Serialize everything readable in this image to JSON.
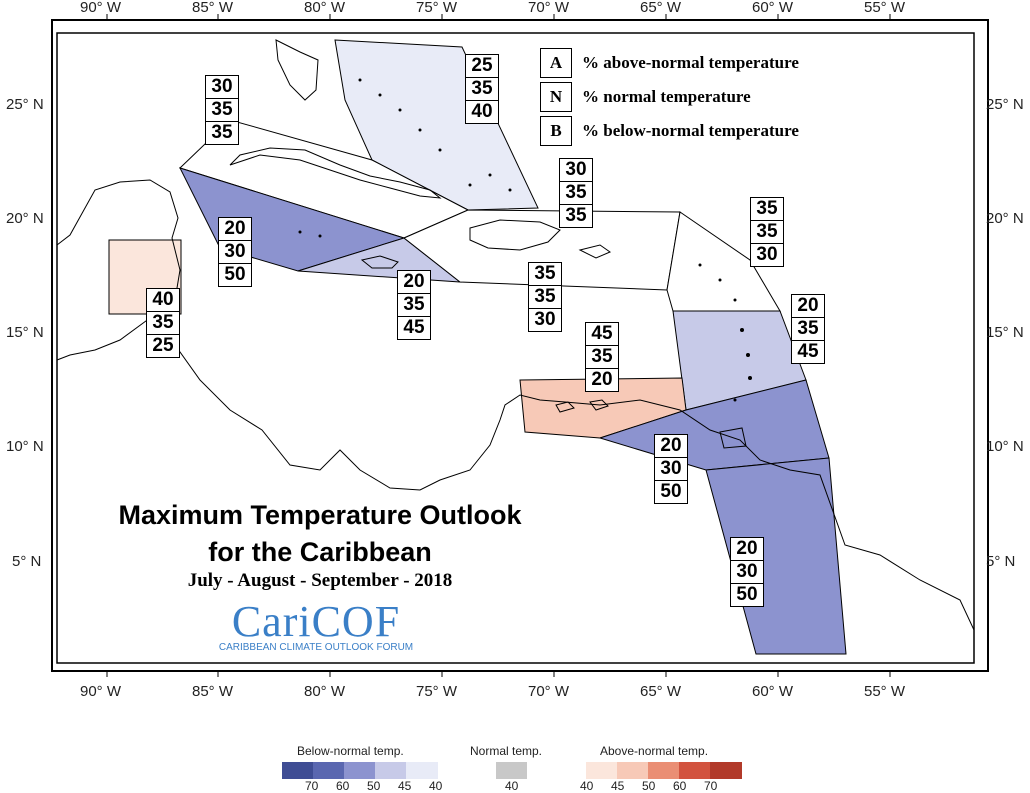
{
  "map": {
    "title_line1": "Maximum Temperature Outlook",
    "title_line2": "for the Caribbean",
    "season": "July - August - September - 2018",
    "logo_word": "CariCOF",
    "logo_subtitle": "CARIBBEAN CLIMATE OUTLOOK FORUM",
    "lon_ticks": [
      "90° W",
      "85° W",
      "80° W",
      "75° W",
      "70° W",
      "65° W",
      "60° W",
      "55° W"
    ],
    "lat_ticks": [
      "25° N",
      "20° N",
      "15° N",
      "10° N",
      "5° N"
    ]
  },
  "legend_key": [
    {
      "key": "A",
      "text": "% above-normal temperature"
    },
    {
      "key": "N",
      "text": "% normal temperature"
    },
    {
      "key": "B",
      "text": "% below-normal temperature"
    }
  ],
  "regions": [
    {
      "id": "bahamas",
      "a": "25",
      "n": "35",
      "b": "40",
      "color": "#e8ebf7"
    },
    {
      "id": "cuba",
      "a": "30",
      "n": "35",
      "b": "35",
      "color": "#ffffff"
    },
    {
      "id": "cayman",
      "a": "20",
      "n": "30",
      "b": "50",
      "color": "#8c93cf"
    },
    {
      "id": "belize",
      "a": "40",
      "n": "35",
      "b": "25",
      "color": "#fbe6dc"
    },
    {
      "id": "jamaica",
      "a": "20",
      "n": "35",
      "b": "45",
      "color": "#c7cae8"
    },
    {
      "id": "hispaniola",
      "a": "35",
      "n": "35",
      "b": "30",
      "color": "#ffffff"
    },
    {
      "id": "turks",
      "a": "30",
      "n": "35",
      "b": "35",
      "color": "#ffffff"
    },
    {
      "id": "leeward_n",
      "a": "35",
      "n": "35",
      "b": "30",
      "color": "#ffffff"
    },
    {
      "id": "windward",
      "a": "20",
      "n": "35",
      "b": "45",
      "color": "#c7cae8"
    },
    {
      "id": "abc",
      "a": "45",
      "n": "35",
      "b": "20",
      "color": "#f7c9b7"
    },
    {
      "id": "trinidad",
      "a": "20",
      "n": "30",
      "b": "50",
      "color": "#8c93cf"
    },
    {
      "id": "guianas",
      "a": "20",
      "n": "30",
      "b": "50",
      "color": "#8c93cf"
    }
  ],
  "scale": {
    "below_label": "Below-normal temp.",
    "normal_label": "Normal temp.",
    "above_label": "Above-normal temp.",
    "below_colors": [
      "#3f4d94",
      "#5a67b0",
      "#8c93cf",
      "#c7cae8",
      "#e8ebf7"
    ],
    "below_values": [
      "70",
      "60",
      "50",
      "45",
      "40"
    ],
    "normal_color": "#c8c8c8",
    "normal_value": "40",
    "above_colors": [
      "#fbe6dc",
      "#f7c9b7",
      "#ea8e74",
      "#d2533f",
      "#b23a2a"
    ],
    "above_values": [
      "40",
      "45",
      "50",
      "60",
      "70"
    ]
  }
}
